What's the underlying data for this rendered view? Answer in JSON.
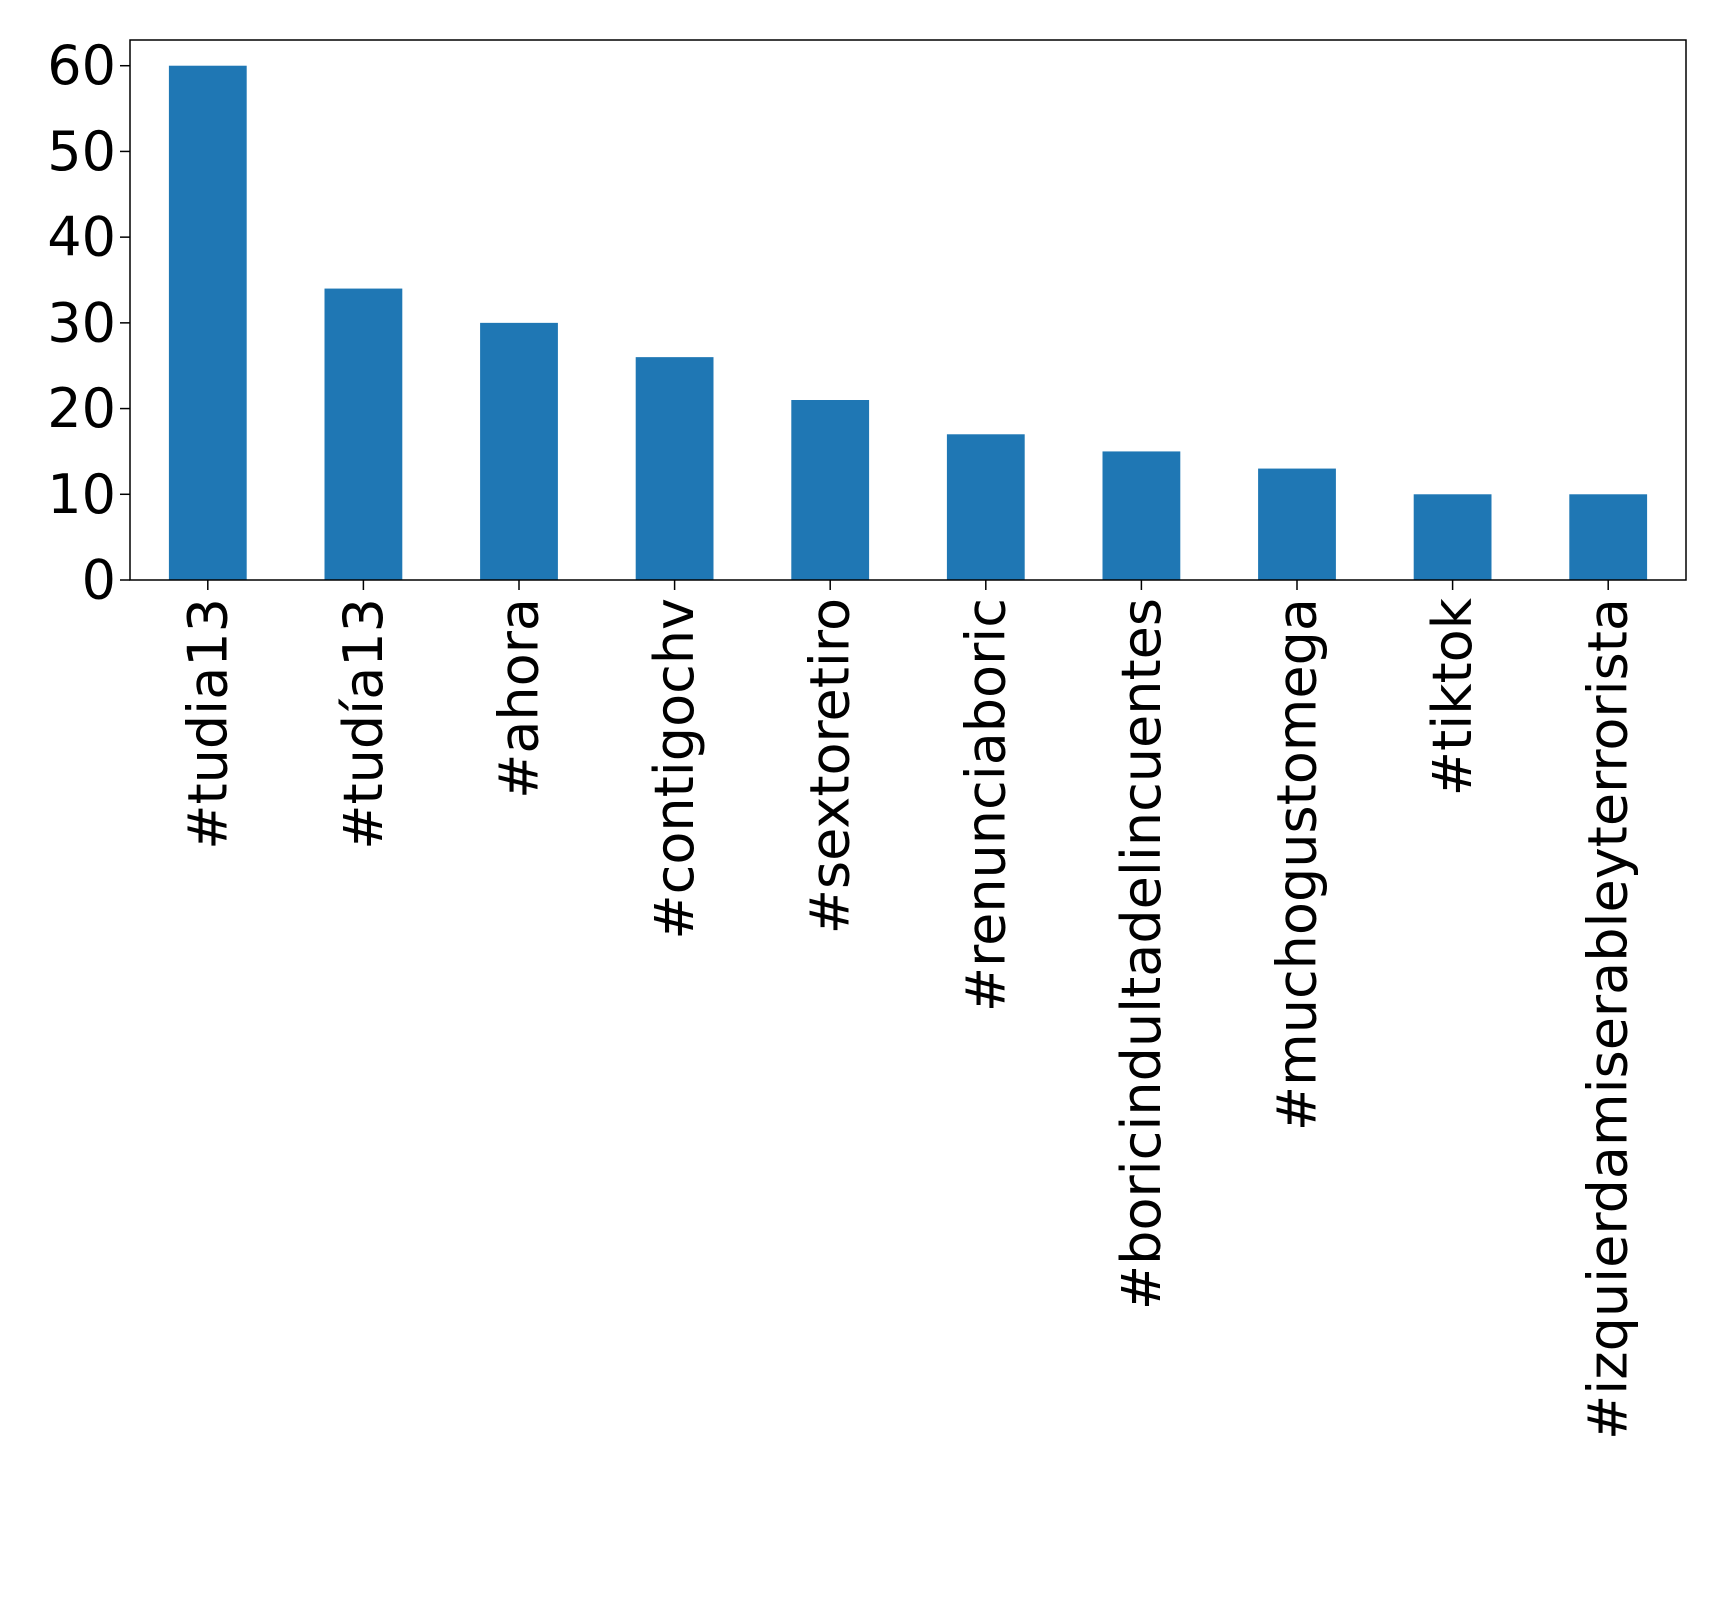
{
  "chart_data": {
    "type": "bar",
    "categories": [
      "#tudia13",
      "#tudía13",
      "#ahora",
      "#contigochv",
      "#sextoretiro",
      "#renunciaboric",
      "#boricindultadelincuentes",
      "#muchogustomega",
      "#tiktok",
      "#izquierdamiserableyterrorista"
    ],
    "values": [
      60,
      34,
      30,
      26,
      21,
      17,
      15,
      13,
      10,
      10
    ],
    "title": "",
    "xlabel": "",
    "ylabel": "",
    "ylim": [
      0,
      63
    ],
    "yticks": [
      0,
      10,
      20,
      30,
      40,
      50,
      60
    ],
    "grid": false,
    "legend": "none",
    "colors": {
      "bar": "#1f77b4",
      "axis": "#000000",
      "background": "#ffffff"
    }
  }
}
